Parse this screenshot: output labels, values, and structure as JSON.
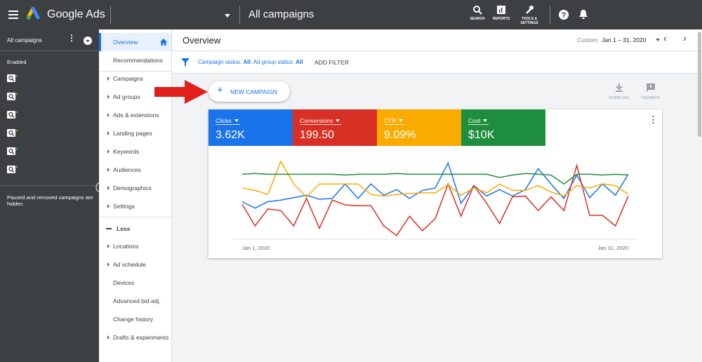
{
  "header": {
    "brand": "Google Ads",
    "title": "All campaigns",
    "tools": [
      "SEARCH",
      "REPORTS",
      "TOOLS & SETTINGS"
    ]
  },
  "left_panel": {
    "title": "All campaigns",
    "section": "Enabled",
    "note": "Paused and removed campaigns are hidden"
  },
  "nav": {
    "items": [
      {
        "label": "Overview",
        "expand": false,
        "active": true
      },
      {
        "label": "Recommendations",
        "expand": false
      },
      {
        "label": "Campaigns",
        "expand": true
      },
      {
        "label": "Ad groups",
        "expand": true
      },
      {
        "label": "Ads & extensions",
        "expand": true
      },
      {
        "label": "Landing pages",
        "expand": true
      },
      {
        "label": "Keywords",
        "expand": true
      },
      {
        "label": "Audiences",
        "expand": true
      },
      {
        "label": "Demographics",
        "expand": true
      },
      {
        "label": "Settings",
        "expand": true
      },
      {
        "label": "Less",
        "expand": false,
        "toggle": true
      },
      {
        "label": "Locations",
        "expand": true
      },
      {
        "label": "Ad schedule",
        "expand": true
      },
      {
        "label": "Devices",
        "expand": false
      },
      {
        "label": "Advanced bid adj.",
        "expand": false
      },
      {
        "label": "Change history",
        "expand": false
      },
      {
        "label": "Drafts & experiments",
        "expand": true
      }
    ]
  },
  "toolbar": {
    "title": "Overview",
    "date_type": "Custom",
    "date_range": "Jan 1 – 31, 2020"
  },
  "filter": {
    "parts": [
      "Campaign status: ",
      "All",
      "; Ad group status: ",
      "All"
    ],
    "add": "ADD FILTER"
  },
  "new_campaign": "NEW CAMPAIGN",
  "actions": [
    "DOWNLOAD",
    "FEEDBACK"
  ],
  "metrics": [
    {
      "name": "Clicks",
      "value": "3.62K"
    },
    {
      "name": "Conversions",
      "value": "199.50"
    },
    {
      "name": "CTR",
      "value": "9.09%"
    },
    {
      "name": "Cost",
      "value": "$10K"
    }
  ],
  "chart_data": {
    "type": "line",
    "x_labels": [
      "Jan 1, 2020",
      "Jan 31, 2020"
    ],
    "ylim": [
      0,
      100
    ],
    "series": [
      {
        "color": "#1a73e8",
        "values": [
          50,
          42,
          50,
          52,
          55,
          58,
          53,
          54,
          72,
          54,
          72,
          58,
          65,
          54,
          64,
          67,
          98,
          48,
          70,
          57,
          65,
          57,
          65,
          91,
          72,
          54,
          83,
          55,
          72,
          58,
          84
        ]
      },
      {
        "color": "#d93025",
        "values": [
          47,
          20,
          41,
          39,
          20,
          54,
          17,
          52,
          46,
          45,
          45,
          20,
          8,
          32,
          14,
          29,
          72,
          32,
          70,
          48,
          23,
          56,
          57,
          39,
          56,
          39,
          95,
          33,
          33,
          20,
          57
        ]
      },
      {
        "color": "#f9ab00",
        "values": [
          67,
          64,
          59,
          100,
          72,
          56,
          72,
          72,
          72,
          72,
          59,
          57,
          59,
          60,
          61,
          61,
          71,
          58,
          67,
          61,
          72,
          64,
          64,
          70,
          62,
          57,
          70,
          67,
          72,
          70,
          59
        ]
      },
      {
        "color": "#1e8e3e",
        "values": [
          84,
          85,
          84,
          84,
          84,
          84,
          84,
          84,
          83,
          84,
          84,
          84,
          85,
          84,
          84,
          84,
          84,
          84,
          84,
          84,
          80,
          83,
          85,
          84,
          83,
          72,
          84,
          84,
          83,
          84,
          83
        ]
      }
    ]
  }
}
